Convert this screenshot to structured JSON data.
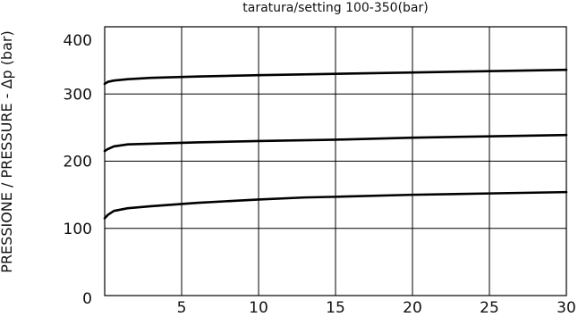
{
  "chart_data": {
    "type": "line",
    "title": "taratura/setting 100-350(bar)",
    "xlabel": "",
    "ylabel": "PRESSIONE / PRESSURE - Δp (bar)",
    "xlim": [
      0,
      30
    ],
    "ylim": [
      0,
      400
    ],
    "x_ticks": [
      5,
      10,
      15,
      20,
      25,
      30
    ],
    "y_ticks": [
      0,
      100,
      200,
      300,
      400
    ],
    "grid": true,
    "series": [
      {
        "points": [
          [
            0,
            315
          ],
          [
            0.2,
            318
          ],
          [
            0.6,
            320
          ],
          [
            1.5,
            322
          ],
          [
            3,
            324
          ],
          [
            6,
            326
          ],
          [
            10,
            328
          ],
          [
            15,
            330
          ],
          [
            20,
            332
          ],
          [
            25,
            334
          ],
          [
            30,
            336
          ]
        ]
      },
      {
        "points": [
          [
            0,
            215
          ],
          [
            0.2,
            218
          ],
          [
            0.6,
            222
          ],
          [
            1.5,
            225
          ],
          [
            3,
            226
          ],
          [
            6,
            228
          ],
          [
            10,
            230
          ],
          [
            15,
            232
          ],
          [
            20,
            235
          ],
          [
            25,
            237
          ],
          [
            30,
            239
          ]
        ]
      },
      {
        "points": [
          [
            0,
            115
          ],
          [
            0.2,
            120
          ],
          [
            0.6,
            126
          ],
          [
            1.5,
            130
          ],
          [
            3,
            133
          ],
          [
            6,
            138
          ],
          [
            10,
            143
          ],
          [
            13,
            146
          ],
          [
            15,
            147
          ],
          [
            20,
            150
          ],
          [
            25,
            152
          ],
          [
            30,
            154
          ]
        ]
      }
    ]
  }
}
